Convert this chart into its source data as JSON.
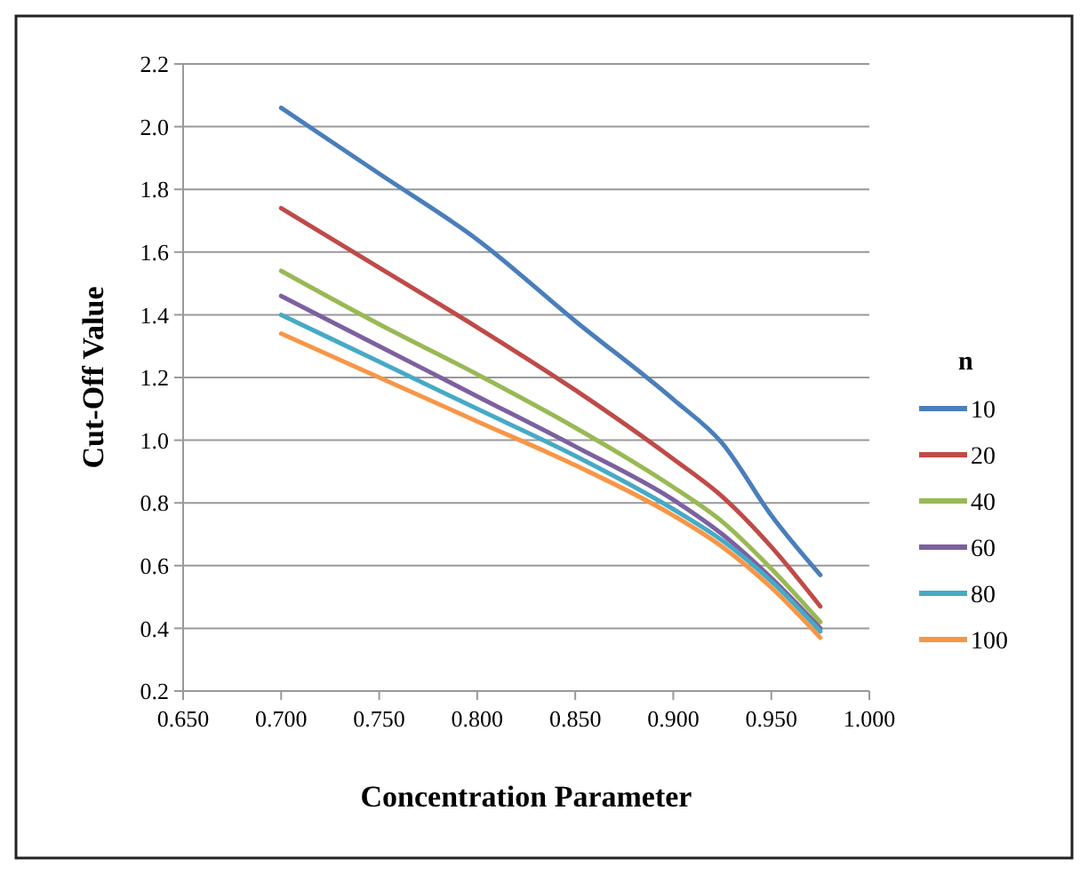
{
  "chart_data": {
    "type": "line",
    "xlabel": "Concentration Parameter",
    "ylabel": "Cut-Off Value",
    "legend_title": "n",
    "legend": "right",
    "grid": "y",
    "marker": "none",
    "line_style": "solid",
    "x": [
      0.7,
      0.75,
      0.8,
      0.85,
      0.9,
      0.925,
      0.95,
      0.975
    ],
    "xlim": [
      0.65,
      1.0
    ],
    "xticks": [
      {
        "value": 0.65,
        "label": "0.650"
      },
      {
        "value": 0.7,
        "label": "0.700"
      },
      {
        "value": 0.75,
        "label": "0.750"
      },
      {
        "value": 0.8,
        "label": "0.800"
      },
      {
        "value": 0.85,
        "label": "0.850"
      },
      {
        "value": 0.9,
        "label": "0.900"
      },
      {
        "value": 0.95,
        "label": "0.950"
      },
      {
        "value": 1.0,
        "label": "1.000"
      }
    ],
    "ylim": [
      0.2,
      2.2
    ],
    "yticks": [
      0.2,
      0.4,
      0.6,
      0.8,
      {
        "value": 1.0,
        "label": "1.0"
      },
      1.2,
      1.4,
      1.6,
      1.8,
      {
        "value": 2.0,
        "label": "2.0"
      },
      2.2
    ],
    "series": [
      {
        "name": "10",
        "color": "#4a7ebb",
        "values": [
          2.06,
          1.85,
          1.64,
          1.38,
          1.13,
          0.99,
          0.76,
          0.57
        ]
      },
      {
        "name": "20",
        "color": "#be4b48",
        "values": [
          1.74,
          1.55,
          1.36,
          1.16,
          0.94,
          0.82,
          0.66,
          0.47
        ]
      },
      {
        "name": "40",
        "color": "#98b954",
        "values": [
          1.54,
          1.37,
          1.21,
          1.04,
          0.85,
          0.74,
          0.59,
          0.42
        ]
      },
      {
        "name": "60",
        "color": "#7d60a0",
        "values": [
          1.46,
          1.3,
          1.14,
          0.98,
          0.81,
          0.7,
          0.56,
          0.4
        ]
      },
      {
        "name": "80",
        "color": "#46aac5",
        "values": [
          1.4,
          1.25,
          1.1,
          0.95,
          0.78,
          0.68,
          0.55,
          0.39
        ]
      },
      {
        "name": "100",
        "color": "#f79646",
        "values": [
          1.34,
          1.2,
          1.06,
          0.92,
          0.76,
          0.66,
          0.53,
          0.37
        ]
      }
    ]
  }
}
